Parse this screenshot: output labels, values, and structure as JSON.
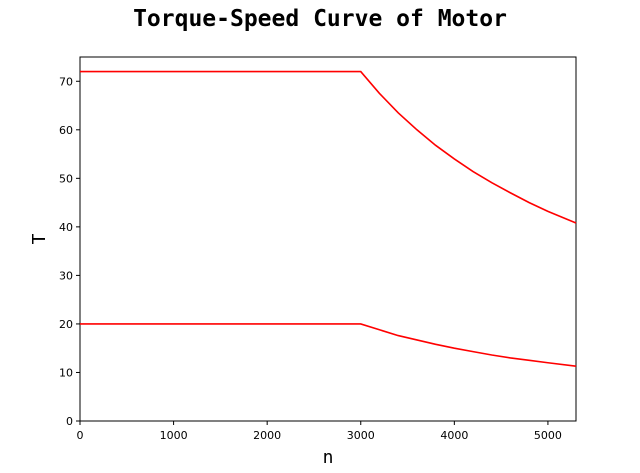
{
  "chart_data": {
    "type": "line",
    "title": "Torque-Speed Curve of Motor",
    "xlabel": "n",
    "ylabel": "T",
    "xlim": [
      0,
      5300
    ],
    "ylim": [
      0,
      75
    ],
    "xticks": [
      0,
      1000,
      2000,
      3000,
      4000,
      5000
    ],
    "yticks": [
      0,
      10,
      20,
      30,
      40,
      50,
      60,
      70
    ],
    "grid": false,
    "legend": "none",
    "color": "#ff0000",
    "series": [
      {
        "x": [
          0,
          3000,
          3200,
          3400,
          3600,
          3800,
          4000,
          4200,
          4400,
          4600,
          4800,
          5000,
          5300
        ],
        "y": [
          72,
          72,
          67.5,
          63.5,
          60,
          56.8,
          54,
          51.4,
          49.1,
          47,
          45,
          43.2,
          40.8
        ]
      },
      {
        "x": [
          0,
          3000,
          3200,
          3400,
          3600,
          3800,
          4000,
          4200,
          4400,
          4600,
          4800,
          5000,
          5300
        ],
        "y": [
          20,
          20,
          18.8,
          17.6,
          16.7,
          15.8,
          15,
          14.3,
          13.6,
          13,
          12.5,
          12,
          11.3
        ]
      }
    ]
  }
}
